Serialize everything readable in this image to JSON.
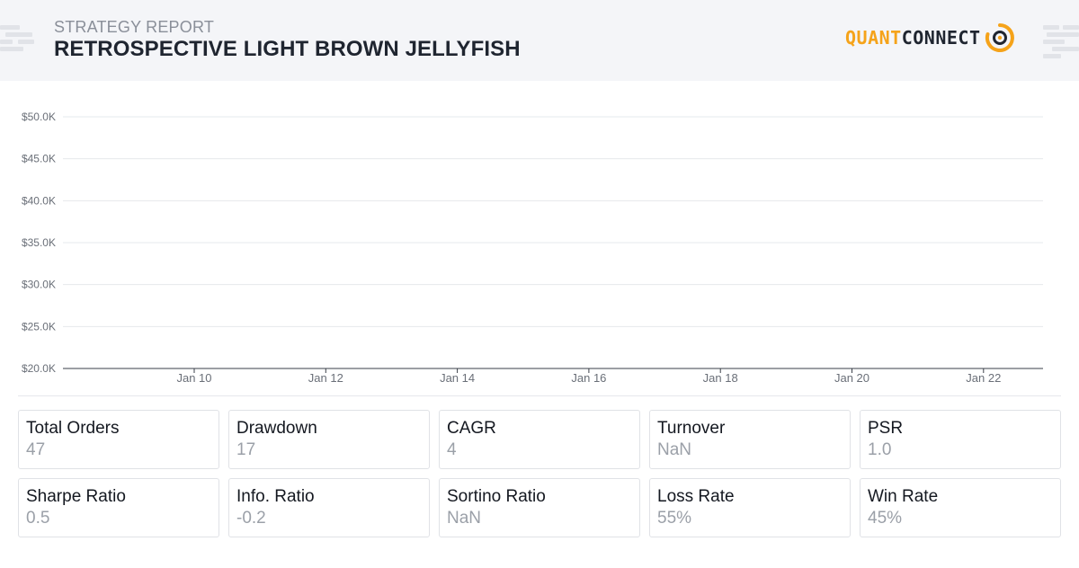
{
  "header": {
    "subtitle": "STRATEGY REPORT",
    "title": "RETROSPECTIVE LIGHT BROWN JELLYFISH",
    "logo_quant": "QUANT",
    "logo_connect": "CONNECT"
  },
  "colors": {
    "header_background": "#f4f5f8",
    "brand_orange": "#f5a31a",
    "brand_dark": "#1f2530",
    "gridline": "#e6e8ec",
    "baseline": "#3a3f48"
  },
  "chart_data": {
    "type": "line",
    "title": "",
    "xlabel": "",
    "ylabel": "",
    "y_ticks": [
      "$50.0K",
      "$45.0K",
      "$40.0K",
      "$35.0K",
      "$30.0K",
      "$25.0K",
      "$20.0K"
    ],
    "x_ticks": [
      "Jan 10",
      "Jan 12",
      "Jan 14",
      "Jan 16",
      "Jan 18",
      "Jan 20",
      "Jan 22"
    ],
    "ylim": [
      20000,
      50000
    ],
    "xlim": [
      "Jan 8",
      "Jan 23"
    ],
    "grid": true,
    "series": []
  },
  "stats": [
    {
      "label": "Total Orders",
      "value": "47"
    },
    {
      "label": "Drawdown",
      "value": "17"
    },
    {
      "label": "CAGR",
      "value": "4"
    },
    {
      "label": "Turnover",
      "value": "NaN"
    },
    {
      "label": "PSR",
      "value": "1.0"
    },
    {
      "label": "Sharpe Ratio",
      "value": "0.5"
    },
    {
      "label": "Info. Ratio",
      "value": "-0.2"
    },
    {
      "label": "Sortino Ratio",
      "value": "NaN"
    },
    {
      "label": "Loss Rate",
      "value": "55%"
    },
    {
      "label": "Win Rate",
      "value": "45%"
    }
  ]
}
